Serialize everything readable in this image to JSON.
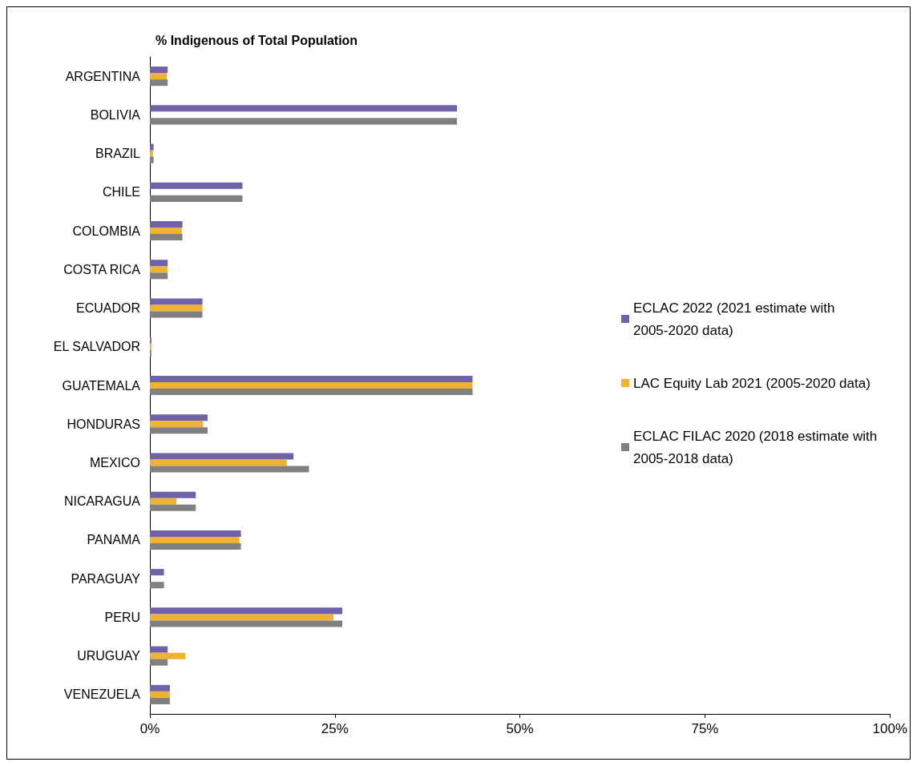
{
  "chart_data": {
    "type": "bar",
    "orientation": "horizontal",
    "title": "% Indigenous of Total Population",
    "categories": [
      "ARGENTINA",
      "BOLIVIA",
      "BRAZIL",
      "CHILE",
      "COLOMBIA",
      "COSTA RICA",
      "ECUADOR",
      "EL SALVADOR",
      "GUATEMALA",
      "HONDURAS",
      "MEXICO",
      "NICARAGUA",
      "PANAMA",
      "PARAGUAY",
      "PERU",
      "URUGUAY",
      "VENEZUELA"
    ],
    "series": [
      {
        "name": "ECLAC 2022 (2021 estimate with 2005-2020 data)",
        "color": "#7161a8",
        "values": [
          2.4,
          41.5,
          0.5,
          12.5,
          4.4,
          2.4,
          7.1,
          0.2,
          43.6,
          7.8,
          19.4,
          6.2,
          12.3,
          1.9,
          26.0,
          2.4,
          2.7
        ]
      },
      {
        "name": "LAC Equity Lab 2021 (2005-2020 data)",
        "color": "#f0b232",
        "values": [
          2.3,
          null,
          0.4,
          null,
          4.3,
          2.4,
          7.1,
          0.2,
          43.6,
          7.2,
          18.5,
          3.6,
          12.1,
          null,
          24.8,
          4.8,
          2.7
        ]
      },
      {
        "name": "ECLAC FILAC 2020 (2018 estimate with 2005-2018 data)",
        "color": "#808080",
        "values": [
          2.4,
          41.5,
          0.5,
          12.5,
          4.4,
          2.4,
          7.1,
          0.2,
          43.6,
          7.8,
          21.5,
          6.2,
          12.3,
          1.9,
          26.0,
          2.4,
          2.7
        ]
      }
    ],
    "xlim": [
      0,
      100
    ],
    "xticks": [
      {
        "value": 0,
        "label": "0%"
      },
      {
        "value": 25,
        "label": "25%"
      },
      {
        "value": 50,
        "label": "50%"
      },
      {
        "value": 75,
        "label": "75%"
      },
      {
        "value": 100,
        "label": "100%"
      }
    ],
    "grid": false,
    "legend": "right"
  }
}
